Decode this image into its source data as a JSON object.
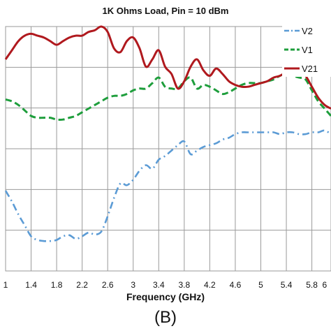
{
  "chart_data": {
    "type": "line",
    "title": "1K Ohms Load, Pin = 10 dBm",
    "xlabel": "Frequency (GHz)",
    "panel_label": "(B)",
    "x": [
      1,
      1.1,
      1.2,
      1.3,
      1.4,
      1.5,
      1.6,
      1.7,
      1.8,
      1.9,
      2.0,
      2.1,
      2.2,
      2.3,
      2.4,
      2.5,
      2.6,
      2.7,
      2.8,
      2.9,
      3.0,
      3.1,
      3.2,
      3.3,
      3.4,
      3.5,
      3.6,
      3.7,
      3.8,
      3.9,
      4.0,
      4.1,
      4.2,
      4.3,
      4.4,
      4.5,
      4.6,
      4.7,
      4.8,
      4.9,
      5.0,
      5.1,
      5.2,
      5.3,
      5.4,
      5.5,
      5.6,
      5.7,
      5.8,
      5.9,
      6.0,
      6.1
    ],
    "x_tick_labels": [
      "1",
      "1.4",
      "1.8",
      "2.2",
      "2.6",
      "3",
      "3.4",
      "3.8",
      "4.2",
      "4.6",
      "5",
      "5.4",
      "5.8",
      "6"
    ],
    "xlim": [
      1,
      6.1
    ],
    "ylim": [
      0,
      6.7
    ],
    "grid": true,
    "legend_position": "top-right",
    "series": [
      {
        "name": "V2",
        "color": "#5b9bd5",
        "dash": "dash-dot",
        "values": [
          2.2,
          1.9,
          1.55,
          1.25,
          0.95,
          0.85,
          0.82,
          0.82,
          0.85,
          0.95,
          0.98,
          0.88,
          0.95,
          1.05,
          1.0,
          1.08,
          1.5,
          2.0,
          2.4,
          2.35,
          2.5,
          2.75,
          2.9,
          2.8,
          3.05,
          3.15,
          3.3,
          3.45,
          3.55,
          3.2,
          3.3,
          3.4,
          3.45,
          3.5,
          3.6,
          3.65,
          3.75,
          3.8,
          3.8,
          3.8,
          3.8,
          3.8,
          3.8,
          3.75,
          3.8,
          3.8,
          3.75,
          3.75,
          3.8,
          3.8,
          3.85,
          3.75
        ]
      },
      {
        "name": "V1",
        "color": "#1e9e3c",
        "dash": "dashed",
        "values": [
          4.7,
          4.65,
          4.55,
          4.4,
          4.25,
          4.2,
          4.2,
          4.2,
          4.15,
          4.15,
          4.2,
          4.25,
          4.35,
          4.45,
          4.55,
          4.65,
          4.75,
          4.8,
          4.8,
          4.85,
          4.95,
          5.0,
          5.0,
          5.15,
          5.3,
          5.05,
          5.0,
          5.0,
          5.2,
          5.3,
          5.0,
          5.1,
          5.05,
          4.95,
          4.85,
          4.9,
          5.0,
          5.1,
          5.15,
          5.15,
          5.15,
          5.2,
          5.25,
          5.35,
          5.4,
          5.35,
          5.3,
          5.25,
          4.95,
          4.65,
          4.45,
          4.25
        ]
      },
      {
        "name": "V21",
        "color": "#b0191e",
        "dash": "solid",
        "values": [
          5.8,
          6.05,
          6.3,
          6.45,
          6.5,
          6.45,
          6.4,
          6.3,
          6.2,
          6.3,
          6.4,
          6.45,
          6.45,
          6.55,
          6.6,
          6.7,
          6.55,
          6.1,
          6.0,
          6.3,
          6.4,
          6.1,
          5.6,
          5.8,
          6.05,
          5.6,
          5.4,
          5.0,
          5.2,
          5.6,
          5.8,
          5.5,
          5.35,
          5.55,
          5.4,
          5.2,
          5.1,
          5.05,
          5.05,
          5.1,
          5.15,
          5.2,
          5.3,
          5.35,
          5.45,
          5.5,
          5.45,
          5.35,
          5.05,
          4.75,
          4.55,
          4.45
        ]
      }
    ]
  }
}
